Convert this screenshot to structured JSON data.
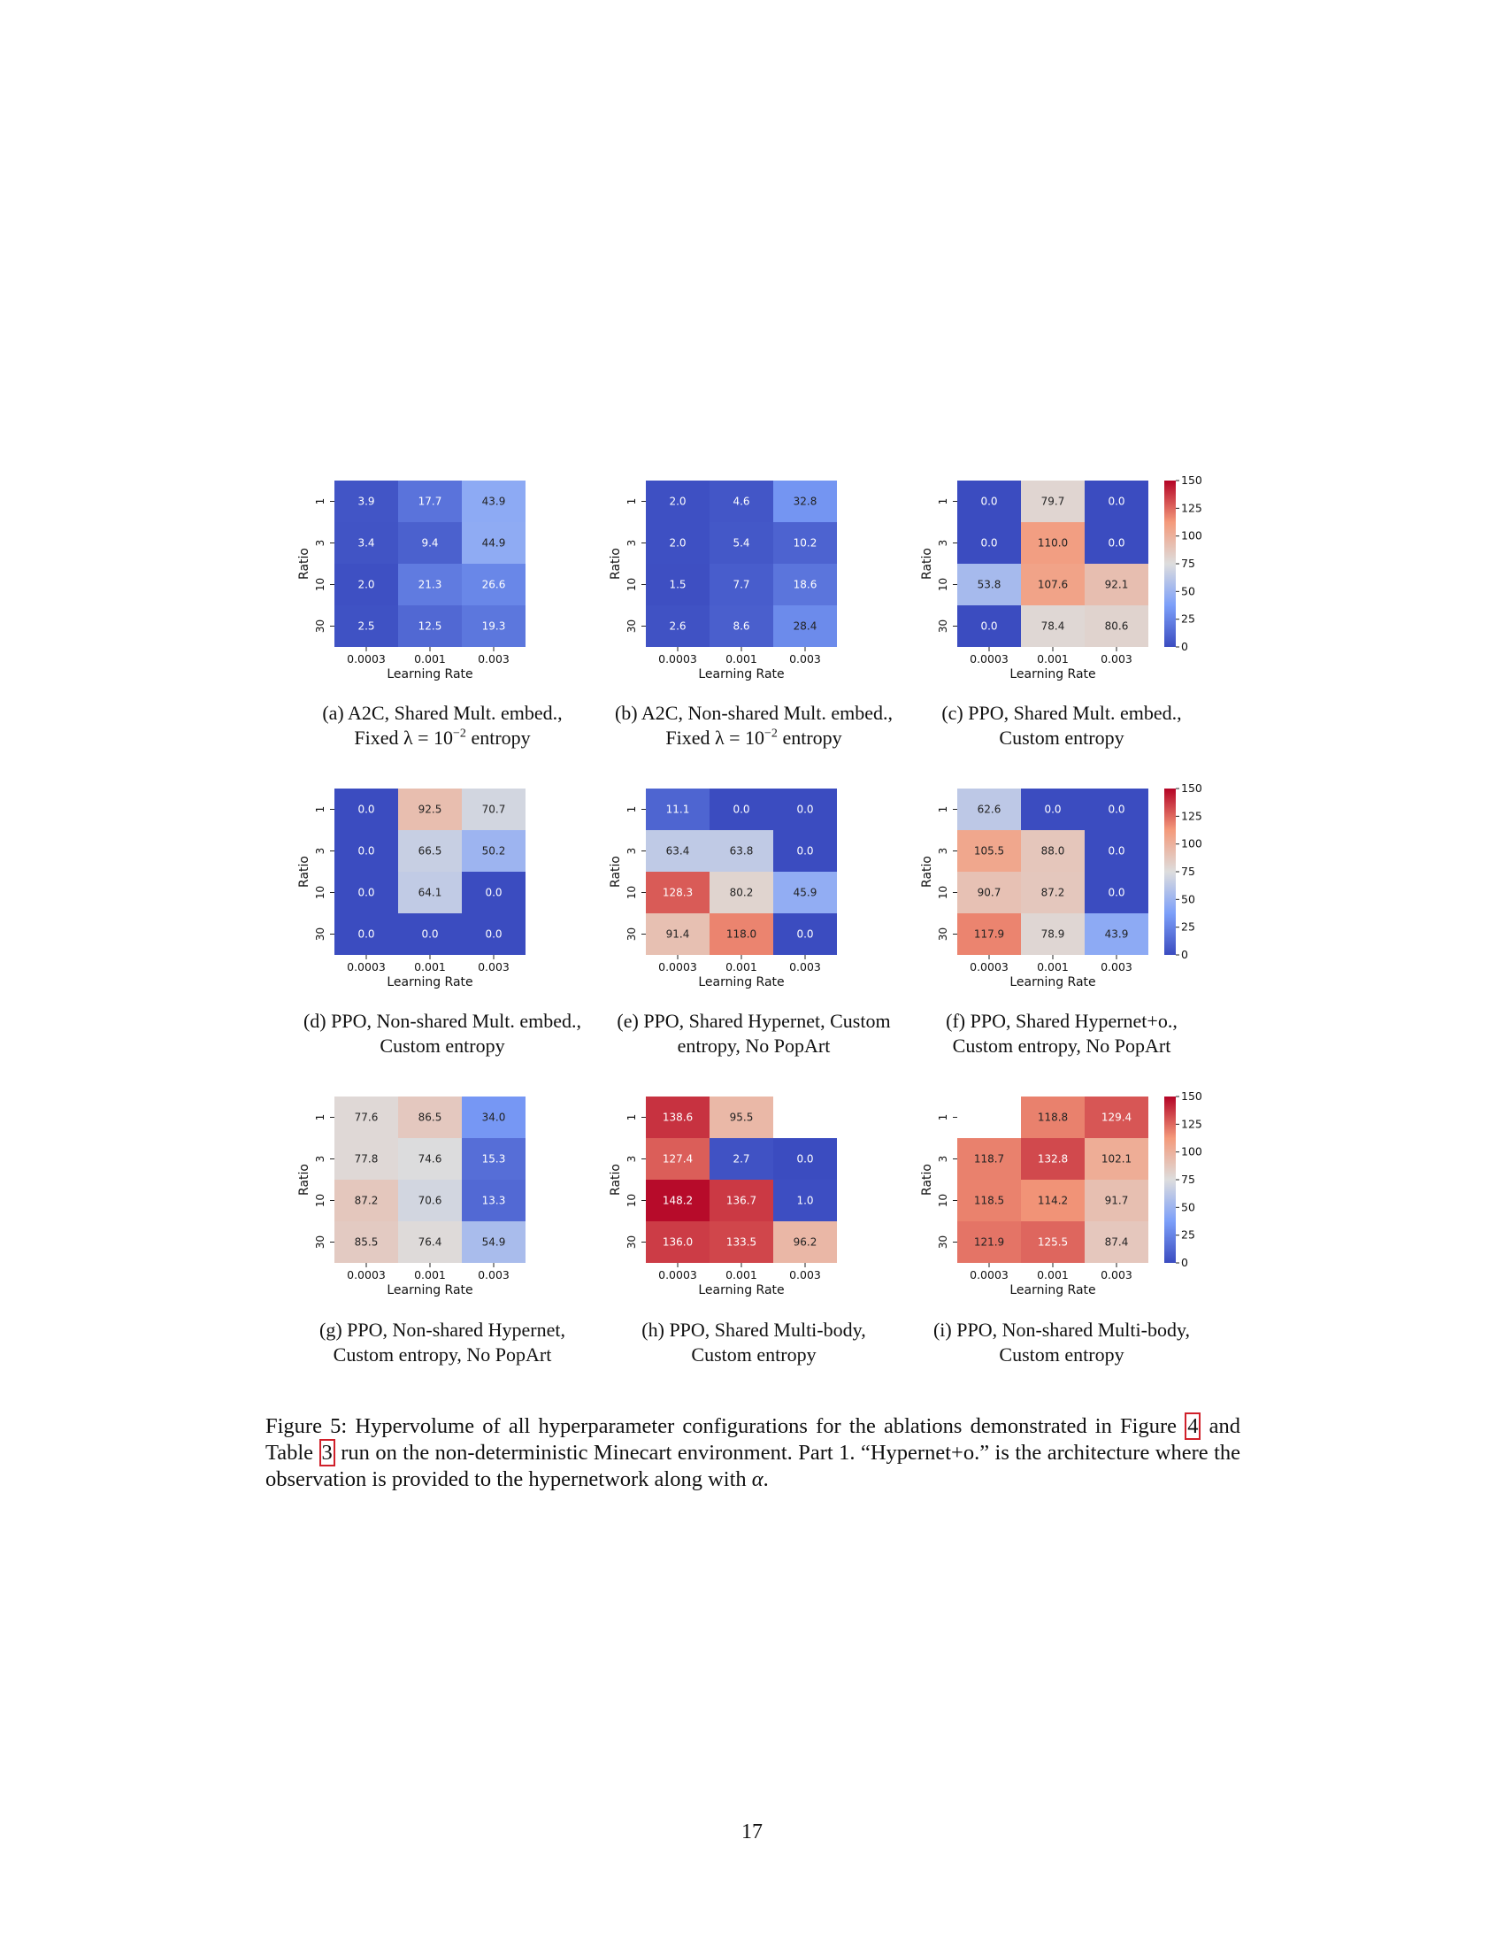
{
  "chart_data": [
    {
      "type": "heatmap",
      "panel": "a",
      "caption_line1": "(a) A2C, Shared Mult. embed.,",
      "caption_line2_pre": "Fixed λ = 10",
      "caption_line2_sup": "−2",
      "caption_line2_post": " entropy",
      "ylabel": "Ratio",
      "xlabel": "Learning Rate",
      "rows": [
        "1",
        "3",
        "10",
        "30"
      ],
      "cols": [
        "0.0003",
        "0.001",
        "0.003"
      ],
      "values": [
        [
          "3.9",
          "17.7",
          "43.9"
        ],
        [
          "3.4",
          "9.4",
          "44.9"
        ],
        [
          "2.0",
          "21.3",
          "26.6"
        ],
        [
          "2.5",
          "12.5",
          "19.3"
        ]
      ],
      "vmin": 0,
      "vmax": 150
    },
    {
      "type": "heatmap",
      "panel": "b",
      "caption_line1": "(b) A2C, Non-shared Mult. embed.,",
      "caption_line2_pre": "Fixed λ = 10",
      "caption_line2_sup": "−2",
      "caption_line2_post": " entropy",
      "ylabel": "Ratio",
      "xlabel": "Learning Rate",
      "rows": [
        "1",
        "3",
        "10",
        "30"
      ],
      "cols": [
        "0.0003",
        "0.001",
        "0.003"
      ],
      "values": [
        [
          "2.0",
          "4.6",
          "32.8"
        ],
        [
          "2.0",
          "5.4",
          "10.2"
        ],
        [
          "1.5",
          "7.7",
          "18.6"
        ],
        [
          "2.6",
          "8.6",
          "28.4"
        ]
      ],
      "vmin": 0,
      "vmax": 150
    },
    {
      "type": "heatmap",
      "panel": "c",
      "caption_line1": "(c) PPO, Shared Mult. embed.,",
      "caption_line2_pre": "Custom entropy",
      "caption_line2_sup": "",
      "caption_line2_post": "",
      "ylabel": "Ratio",
      "xlabel": "Learning Rate",
      "rows": [
        "1",
        "3",
        "10",
        "30"
      ],
      "cols": [
        "0.0003",
        "0.001",
        "0.003"
      ],
      "values": [
        [
          "0.0",
          "79.7",
          "0.0"
        ],
        [
          "0.0",
          "110.0",
          "0.0"
        ],
        [
          "53.8",
          "107.6",
          "92.1"
        ],
        [
          "0.0",
          "78.4",
          "80.6"
        ]
      ],
      "vmin": 0,
      "vmax": 150,
      "colorbar_ticks": [
        "150",
        "125",
        "100",
        "75",
        "50",
        "25",
        "0"
      ]
    },
    {
      "type": "heatmap",
      "panel": "d",
      "caption_line1": "(d) PPO, Non-shared Mult. embed.,",
      "caption_line2_pre": "Custom entropy",
      "caption_line2_sup": "",
      "caption_line2_post": "",
      "ylabel": "Ratio",
      "xlabel": "Learning Rate",
      "rows": [
        "1",
        "3",
        "10",
        "30"
      ],
      "cols": [
        "0.0003",
        "0.001",
        "0.003"
      ],
      "values": [
        [
          "0.0",
          "92.5",
          "70.7"
        ],
        [
          "0.0",
          "66.5",
          "50.2"
        ],
        [
          "0.0",
          "64.1",
          "0.0"
        ],
        [
          "0.0",
          "0.0",
          "0.0"
        ]
      ],
      "vmin": 0,
      "vmax": 150
    },
    {
      "type": "heatmap",
      "panel": "e",
      "caption_line1": "(e) PPO, Shared Hypernet, Custom",
      "caption_line2_pre": "entropy, No PopArt",
      "caption_line2_sup": "",
      "caption_line2_post": "",
      "ylabel": "Ratio",
      "xlabel": "Learning Rate",
      "rows": [
        "1",
        "3",
        "10",
        "30"
      ],
      "cols": [
        "0.0003",
        "0.001",
        "0.003"
      ],
      "values": [
        [
          "11.1",
          "0.0",
          "0.0"
        ],
        [
          "63.4",
          "63.8",
          "0.0"
        ],
        [
          "128.3",
          "80.2",
          "45.9"
        ],
        [
          "91.4",
          "118.0",
          "0.0"
        ]
      ],
      "vmin": 0,
      "vmax": 150
    },
    {
      "type": "heatmap",
      "panel": "f",
      "caption_line1": "(f) PPO, Shared Hypernet+o.,",
      "caption_line2_pre": "Custom entropy, No PopArt",
      "caption_line2_sup": "",
      "caption_line2_post": "",
      "ylabel": "Ratio",
      "xlabel": "Learning Rate",
      "rows": [
        "1",
        "3",
        "10",
        "30"
      ],
      "cols": [
        "0.0003",
        "0.001",
        "0.003"
      ],
      "values": [
        [
          "62.6",
          "0.0",
          "0.0"
        ],
        [
          "105.5",
          "88.0",
          "0.0"
        ],
        [
          "90.7",
          "87.2",
          "0.0"
        ],
        [
          "117.9",
          "78.9",
          "43.9"
        ]
      ],
      "vmin": 0,
      "vmax": 150,
      "colorbar_ticks": [
        "150",
        "125",
        "100",
        "75",
        "50",
        "25",
        "0"
      ]
    },
    {
      "type": "heatmap",
      "panel": "g",
      "caption_line1": "(g) PPO, Non-shared Hypernet,",
      "caption_line2_pre": "Custom entropy, No PopArt",
      "caption_line2_sup": "",
      "caption_line2_post": "",
      "ylabel": "Ratio",
      "xlabel": "Learning Rate",
      "rows": [
        "1",
        "3",
        "10",
        "30"
      ],
      "cols": [
        "0.0003",
        "0.001",
        "0.003"
      ],
      "values": [
        [
          "77.6",
          "86.5",
          "34.0"
        ],
        [
          "77.8",
          "74.6",
          "15.3"
        ],
        [
          "87.2",
          "70.6",
          "13.3"
        ],
        [
          "85.5",
          "76.4",
          "54.9"
        ]
      ],
      "vmin": 0,
      "vmax": 150
    },
    {
      "type": "heatmap",
      "panel": "h",
      "caption_line1": "(h) PPO, Shared Multi-body,",
      "caption_line2_pre": "Custom entropy",
      "caption_line2_sup": "",
      "caption_line2_post": "",
      "ylabel": "Ratio",
      "xlabel": "Learning Rate",
      "rows": [
        "1",
        "3",
        "10",
        "30"
      ],
      "cols": [
        "0.0003",
        "0.001",
        "0.003"
      ],
      "values": [
        [
          "138.6",
          "95.5",
          ""
        ],
        [
          "127.4",
          "2.7",
          "0.0"
        ],
        [
          "148.2",
          "136.7",
          "1.0"
        ],
        [
          "136.0",
          "133.5",
          "96.2"
        ]
      ],
      "vmin": 0,
      "vmax": 150
    },
    {
      "type": "heatmap",
      "panel": "i",
      "caption_line1": "(i) PPO, Non-shared Multi-body,",
      "caption_line2_pre": "Custom entropy",
      "caption_line2_sup": "",
      "caption_line2_post": "",
      "ylabel": "Ratio",
      "xlabel": "Learning Rate",
      "rows": [
        "1",
        "3",
        "10",
        "30"
      ],
      "cols": [
        "0.0003",
        "0.001",
        "0.003"
      ],
      "values": [
        [
          "",
          "118.8",
          "129.4"
        ],
        [
          "118.7",
          "132.8",
          "102.1"
        ],
        [
          "118.5",
          "114.2",
          "91.7"
        ],
        [
          "121.9",
          "125.5",
          "87.4"
        ]
      ],
      "vmin": 0,
      "vmax": 150,
      "colorbar_ticks": [
        "150",
        "125",
        "100",
        "75",
        "50",
        "25",
        "0"
      ]
    }
  ],
  "figure_caption": {
    "part1": "Figure 5: Hypervolume of all hyperparameter configurations for the ablations demonstrated in Figure ",
    "ref1": "4",
    "part2": " and Table ",
    "ref2": "3",
    "part3": " run on the non-deterministic Minecart environment. Part 1. “Hypernet+o.” is the architecture where the observation is provided to the hypernetwork along with ",
    "alpha": "α",
    "part4": "."
  },
  "page_number": "17"
}
